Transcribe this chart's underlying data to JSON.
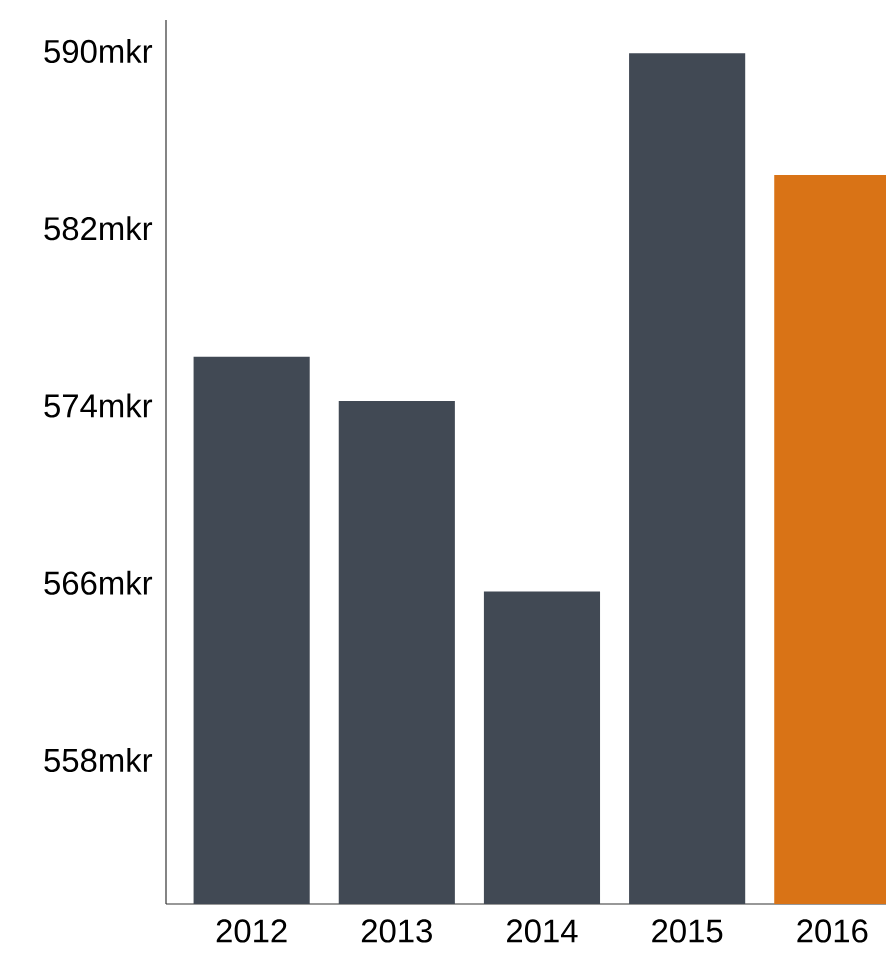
{
  "chart_data": {
    "type": "bar",
    "categories": [
      "2012",
      "2013",
      "2014",
      "2015",
      "2016"
    ],
    "values": [
      576.2,
      574.2,
      565.6,
      589.9,
      584.4
    ],
    "colors": [
      "#414954",
      "#414954",
      "#414954",
      "#414954",
      "#d97316"
    ],
    "ylim": [
      551.5,
      591.4
    ],
    "yticks": [
      {
        "value": 558,
        "label": "558mkr"
      },
      {
        "value": 566,
        "label": "566mkr"
      },
      {
        "value": 574,
        "label": "574mkr"
      },
      {
        "value": 582,
        "label": "582mkr"
      },
      {
        "value": 590,
        "label": "590mkr"
      }
    ],
    "grid": false
  }
}
